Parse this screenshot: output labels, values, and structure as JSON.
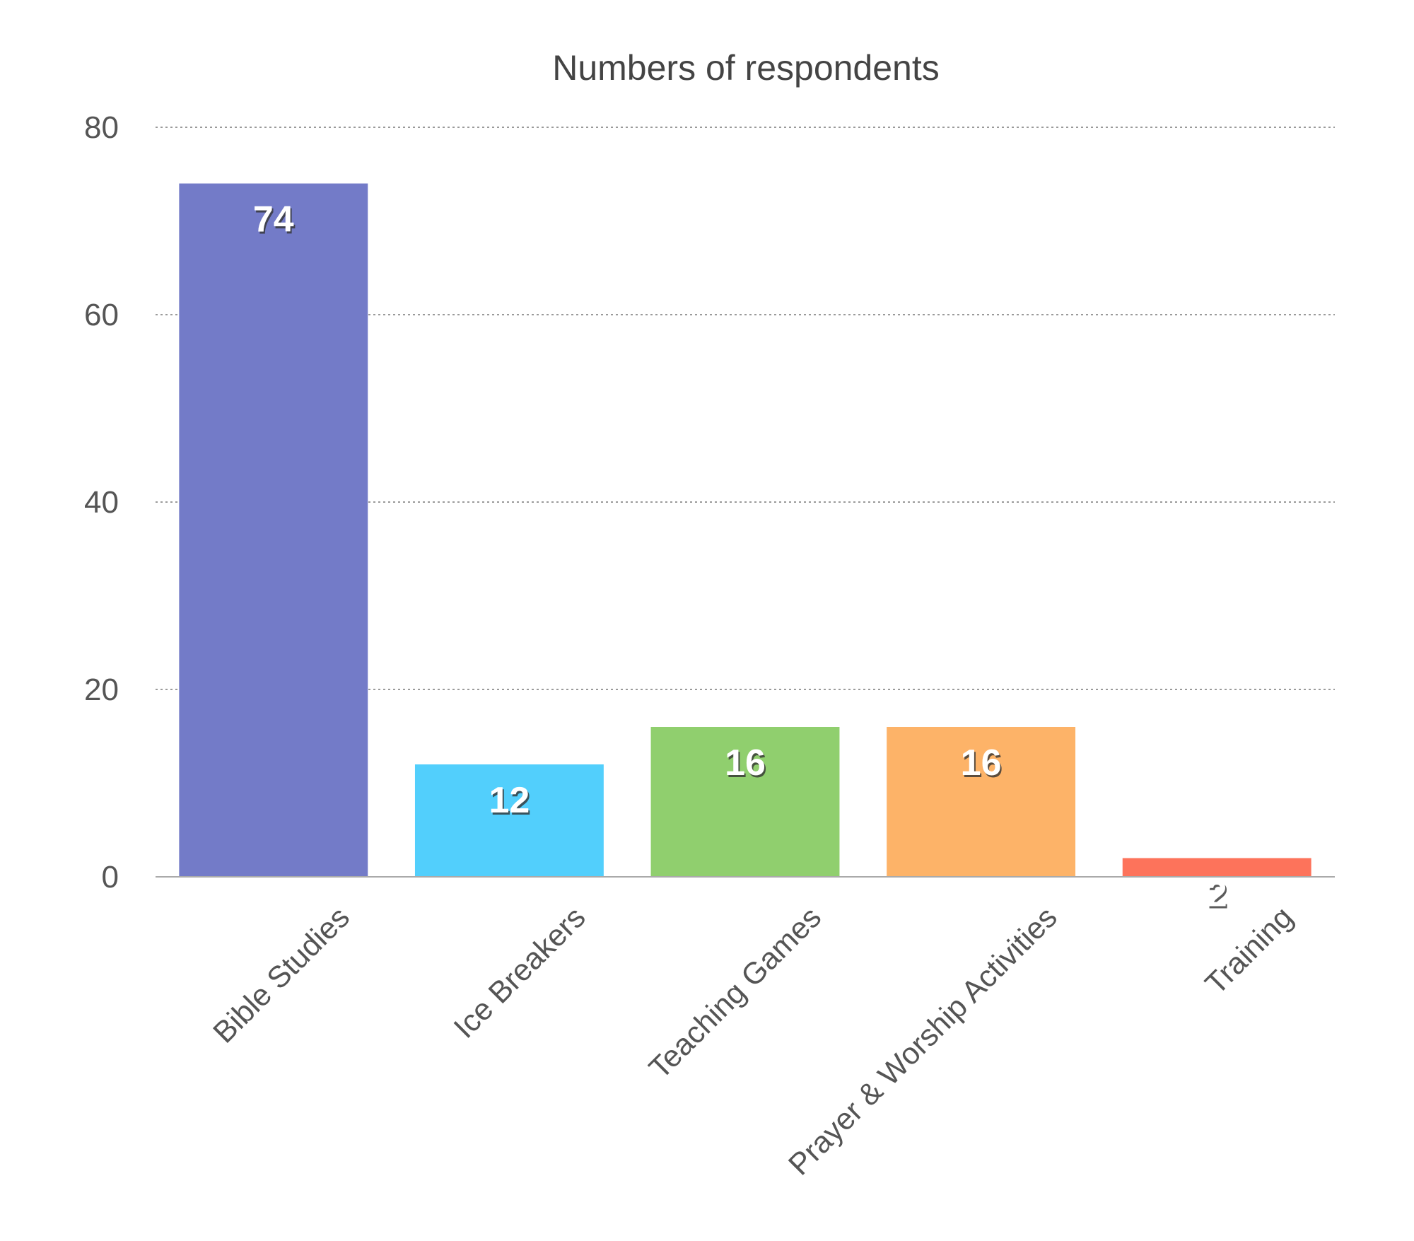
{
  "chart_data": {
    "type": "bar",
    "title": "Numbers of respondents",
    "categories": [
      "Bible Studies",
      "Ice Breakers",
      "Teaching Games",
      "Prayer & Worship Activities",
      "Training"
    ],
    "values": [
      74,
      12,
      16,
      16,
      2
    ],
    "colors": [
      "#737bc8",
      "#52cffc",
      "#90cf6e",
      "#fdb368",
      "#fd735b"
    ],
    "ylim": [
      0,
      80
    ],
    "yticks": [
      0,
      20,
      40,
      60,
      80
    ],
    "grid": true,
    "data_labels": true,
    "legend": "none"
  }
}
